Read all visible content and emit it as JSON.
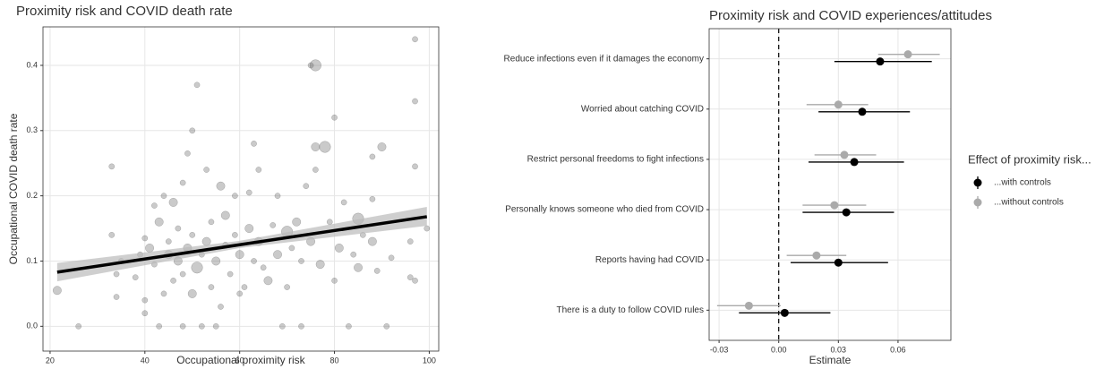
{
  "chart_data": [
    {
      "type": "scatter",
      "title": "Proximity risk and COVID death rate",
      "x_label": "Occupational proximity risk",
      "y_label": "Occupational COVID death rate",
      "x": [
        21.5,
        26,
        33,
        33,
        34,
        34,
        35,
        38,
        39,
        40,
        40,
        40,
        41,
        42,
        42,
        43,
        43,
        44,
        44,
        45,
        45,
        46,
        46,
        47,
        47,
        48,
        48,
        48,
        49,
        49,
        50,
        50,
        50,
        51,
        51,
        52,
        52,
        53,
        53,
        54,
        54,
        55,
        55,
        56,
        56,
        57,
        57,
        58,
        59,
        59,
        60,
        60,
        61,
        62,
        62,
        63,
        63,
        64,
        64,
        65,
        66,
        67,
        68,
        68,
        69,
        70,
        70,
        71,
        72,
        73,
        73,
        74,
        75,
        75,
        76,
        76,
        76,
        77,
        78,
        79,
        80,
        80,
        81,
        82,
        83,
        84,
        85,
        85,
        86,
        88,
        88,
        88,
        89,
        90,
        91,
        92,
        96,
        96,
        97,
        97,
        97,
        97,
        99.5
      ],
      "y": [
        0.055,
        0,
        0.245,
        0.14,
        0.08,
        0.045,
        0.1,
        0.075,
        0.11,
        0.135,
        0.04,
        0.02,
        0.12,
        0.095,
        0.185,
        0.16,
        0,
        0.05,
        0.2,
        0.11,
        0.13,
        0.07,
        0.19,
        0.15,
        0.1,
        0.22,
        0.08,
        0,
        0.12,
        0.265,
        0.14,
        0.05,
        0.3,
        0.09,
        0.37,
        0.11,
        0,
        0.13,
        0.24,
        0.06,
        0.16,
        0.1,
        0,
        0.215,
        0.03,
        0.125,
        0.17,
        0.08,
        0.14,
        0.2,
        0.11,
        0.05,
        0.06,
        0.15,
        0.205,
        0.1,
        0.28,
        0.13,
        0.24,
        0.09,
        0.07,
        0.155,
        0.11,
        0.2,
        0,
        0.145,
        0.06,
        0.12,
        0.16,
        0,
        0.1,
        0.215,
        0.13,
        0.4,
        0.24,
        0.4,
        0.275,
        0.095,
        0.275,
        0.16,
        0.32,
        0.07,
        0.12,
        0.19,
        0,
        0.11,
        0.165,
        0.09,
        0.14,
        0.195,
        0.26,
        0.13,
        0.085,
        0.275,
        0,
        0.105,
        0.075,
        0.13,
        0.245,
        0.345,
        0.44,
        0.07,
        0.15
      ],
      "sizes": [
        2,
        1,
        1,
        1,
        1,
        1,
        1,
        1,
        1,
        1,
        1,
        1,
        2,
        1,
        1,
        2,
        1,
        1,
        1,
        2,
        1,
        1,
        2,
        1,
        2,
        1,
        1,
        1,
        2,
        1,
        1,
        2,
        1,
        3,
        1,
        1,
        1,
        2,
        1,
        1,
        1,
        2,
        1,
        2,
        1,
        1,
        2,
        1,
        1,
        1,
        2,
        1,
        1,
        2,
        1,
        1,
        1,
        2,
        1,
        1,
        2,
        1,
        2,
        1,
        1,
        3,
        1,
        1,
        2,
        1,
        1,
        1,
        2,
        1,
        1,
        3,
        2,
        2,
        3,
        1,
        1,
        1,
        2,
        1,
        1,
        1,
        3,
        2,
        1,
        1,
        1,
        2,
        1,
        2,
        1,
        1,
        1,
        1,
        1,
        1,
        1,
        1,
        1
      ],
      "color": "#666666",
      "fit": {
        "x": [
          21.5,
          60,
          99.5
        ],
        "y": [
          0.083,
          0.125,
          0.168
        ],
        "lower": [
          0.069,
          0.12,
          0.154
        ],
        "upper": [
          0.097,
          0.131,
          0.183
        ],
        "color": "#000000",
        "band_color": "#bbbbbb"
      },
      "xlim": [
        18.5,
        102
      ],
      "ylim": [
        -0.038,
        0.459
      ],
      "xticks": [
        20,
        40,
        60,
        80,
        100
      ],
      "yticks": [
        {
          "value": 0,
          "label": "0.0"
        },
        0.1,
        0.2,
        0.3,
        0.4
      ],
      "grid": true
    },
    {
      "type": "dot_errorbar",
      "title": "Proximity risk and COVID experiences/attitudes",
      "x_label": "Estimate",
      "categories": [
        "Reduce infections even if it damages the economy",
        "Worried about catching COVID",
        "Restrict personal freedoms to fight infections",
        "Personally knows someone who died from COVID",
        "Reports having had COVID",
        "There is a duty to follow COVID rules"
      ],
      "series": [
        {
          "name": "...with controls",
          "color": "#000000",
          "values": [
            0.051,
            0.042,
            0.038,
            0.034,
            0.03,
            0.003
          ],
          "lower": [
            0.028,
            0.02,
            0.015,
            0.012,
            0.006,
            -0.02
          ],
          "upper": [
            0.077,
            0.066,
            0.063,
            0.058,
            0.055,
            0.026
          ]
        },
        {
          "name": "...without controls",
          "color": "#aaaaaa",
          "values": [
            0.065,
            0.03,
            0.033,
            0.028,
            0.019,
            -0.015
          ],
          "lower": [
            0.05,
            0.014,
            0.018,
            0.012,
            0.004,
            -0.031
          ],
          "upper": [
            0.081,
            0.045,
            0.049,
            0.044,
            0.034,
            0.001
          ]
        }
      ],
      "legend_title": "Effect of proximity risk...",
      "legend": "right",
      "xlim": [
        -0.035,
        0.0866
      ],
      "xticks": [
        -0.03,
        {
          "value": 0,
          "label": "0.00"
        },
        0.03,
        0.06
      ],
      "grid": true,
      "reference_line": 0
    }
  ]
}
